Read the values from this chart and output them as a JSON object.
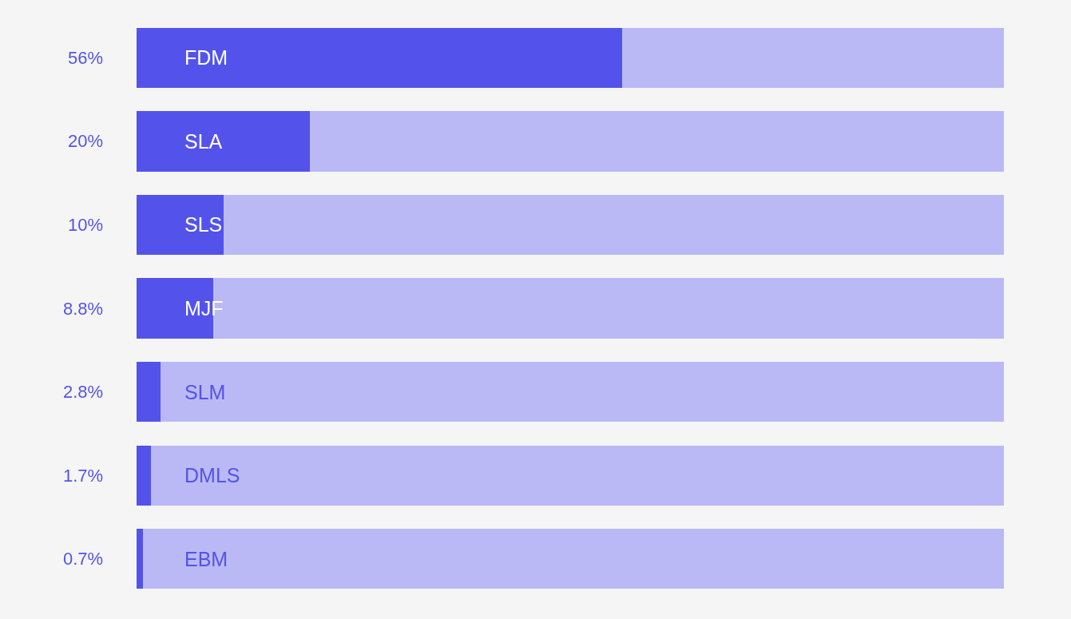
{
  "chart_data": {
    "type": "bar",
    "orientation": "horizontal",
    "categories": [
      "FDM",
      "SLA",
      "SLS",
      "MJF",
      "SLM",
      "DMLS",
      "EBM"
    ],
    "xlim": [
      0,
      100
    ],
    "tick_labels": false,
    "stacked": true,
    "series": [
      {
        "color": "#5353ec",
        "values": [
          56,
          20,
          10,
          8.8,
          2.8,
          1.7,
          0.7
        ],
        "value_labels": [
          "56%",
          "20%",
          "10%",
          "8.8%",
          "2.8%",
          "1.7%",
          "0.7%"
        ]
      },
      {
        "color": "#bab9f5",
        "values": [
          44,
          80,
          90,
          91.2,
          97.2,
          98.3,
          99.3
        ]
      }
    ]
  }
}
